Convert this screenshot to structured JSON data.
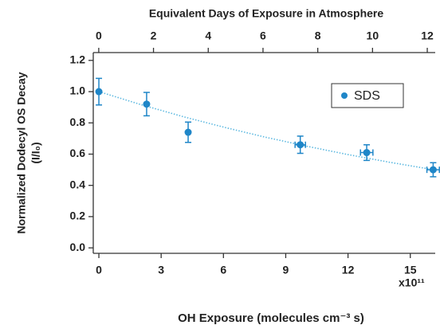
{
  "chart_data": {
    "type": "scatter",
    "title": "Equivalent Days of Exposure in Atmosphere",
    "x_label": "OH Exposure (molecules cm⁻³ s)",
    "y_label": "Normalized Dodecyl OS Decay",
    "y_label_sub": "(I/I₀)",
    "x_offset_label": "x10¹¹",
    "xlim": [
      -0.27,
      16.2
    ],
    "xticks": [
      0,
      3,
      6,
      9,
      12,
      15
    ],
    "x2lim": [
      -0.2,
      12.29
    ],
    "x2ticks": [
      0,
      2,
      4,
      6,
      8,
      10,
      12
    ],
    "ylim": [
      -0.035,
      1.25
    ],
    "yticks": [
      {
        "value": 0,
        "label": "0.0"
      },
      0.2,
      0.4,
      0.6,
      0.8,
      {
        "value": 1,
        "label": "1.0"
      },
      1.2
    ],
    "legend": "upper right",
    "series": [
      {
        "name": "SDS",
        "color": "#1f86c8",
        "x": [
          0,
          2.3,
          4.3,
          9.7,
          12.9,
          16.1
        ],
        "values": [
          1.0,
          0.92,
          0.74,
          0.66,
          0.61,
          0.5
        ],
        "yerr": [
          0.085,
          0.075,
          0.065,
          0.055,
          0.05,
          0.045
        ],
        "xerr": [
          0,
          0,
          0,
          0.25,
          0.3,
          0.3
        ]
      },
      {
        "color": "#5cb8e0",
        "line": "dotted",
        "x": [
          0,
          2,
          4,
          6,
          8,
          10,
          12,
          14,
          16
        ],
        "values": [
          1.0,
          0.918,
          0.842,
          0.773,
          0.709,
          0.651,
          0.597,
          0.548,
          0.503
        ]
      }
    ]
  }
}
